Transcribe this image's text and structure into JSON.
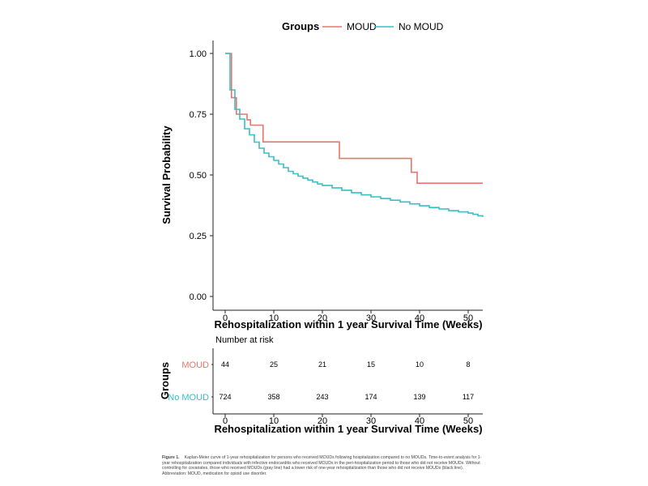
{
  "chart_data": [
    {
      "type": "line",
      "subtype": "step (Kaplan-Meier survival curve)",
      "legend": {
        "title": "Groups",
        "position": "top"
      },
      "xlabel": "Rehospitalization within 1 year Survival Time (Weeks)",
      "ylabel": "Survival Probability",
      "xlim": [
        0,
        53
      ],
      "ylim": [
        0,
        1
      ],
      "x_ticks": [
        0,
        10,
        20,
        30,
        40,
        50
      ],
      "y_ticks": [
        0.0,
        0.25,
        0.5,
        0.75,
        1.0
      ],
      "y_tick_labels": [
        "0.00",
        "0.25",
        "0.50",
        "0.75",
        "1.00"
      ],
      "grid": false,
      "series": [
        {
          "name": "MOUD",
          "color": "#e8766c",
          "points": [
            [
              0,
              1.0
            ],
            [
              1.3,
              0.818
            ],
            [
              2.3,
              0.75
            ],
            [
              4.5,
              0.727
            ],
            [
              5.2,
              0.705
            ],
            [
              7.8,
              0.636
            ],
            [
              23.5,
              0.568
            ],
            [
              38.3,
              0.511
            ],
            [
              39.5,
              0.466
            ],
            [
              53,
              0.466
            ]
          ]
        },
        {
          "name": "No MOUD",
          "color": "#36bfc4",
          "points": [
            [
              0,
              1.0
            ],
            [
              1,
              0.85
            ],
            [
              2,
              0.77
            ],
            [
              3,
              0.73
            ],
            [
              4,
              0.69
            ],
            [
              5,
              0.665
            ],
            [
              6,
              0.635
            ],
            [
              7,
              0.61
            ],
            [
              8,
              0.59
            ],
            [
              9,
              0.575
            ],
            [
              10,
              0.56
            ],
            [
              11,
              0.545
            ],
            [
              12,
              0.53
            ],
            [
              13,
              0.515
            ],
            [
              14,
              0.505
            ],
            [
              15,
              0.495
            ],
            [
              16,
              0.487
            ],
            [
              17,
              0.479
            ],
            [
              18,
              0.471
            ],
            [
              19,
              0.463
            ],
            [
              20,
              0.457
            ],
            [
              22,
              0.447
            ],
            [
              24,
              0.437
            ],
            [
              26,
              0.427
            ],
            [
              28,
              0.418
            ],
            [
              30,
              0.41
            ],
            [
              32,
              0.403
            ],
            [
              34,
              0.396
            ],
            [
              36,
              0.389
            ],
            [
              38,
              0.381
            ],
            [
              40,
              0.373
            ],
            [
              42,
              0.366
            ],
            [
              44,
              0.36
            ],
            [
              46,
              0.353
            ],
            [
              48,
              0.348
            ],
            [
              50,
              0.343
            ],
            [
              51,
              0.338
            ],
            [
              52,
              0.332
            ],
            [
              53,
              0.327
            ]
          ]
        }
      ]
    },
    {
      "type": "table",
      "title": "Number at risk",
      "ylabel": "Groups",
      "xlabel": "Rehospitalization within 1 year Survival Time (Weeks)",
      "xlim": [
        0,
        53
      ],
      "x_ticks": [
        0,
        10,
        20,
        30,
        40,
        50
      ],
      "rows": [
        {
          "name": "MOUD",
          "color": "#e8766c",
          "values": [
            44,
            25,
            21,
            15,
            10,
            8
          ]
        },
        {
          "name": "No MOUD",
          "color": "#36bfc4",
          "values": [
            724,
            358,
            243,
            174,
            139,
            117
          ]
        }
      ]
    }
  ],
  "caption": {
    "label": "Figure 1.",
    "text": "Kaplan-Meier curve of 1-year rehospitalization for persons who received MOUDs following hospitalization compared to no MOUDs. Time-to-event analysis for 1-year rehospitalization compared individuals with infective endocarditis who received MOUDs in the peri-hospitalization period to those who did not receive MOUDs. Without controlling for covariates, those who received MOUDs (gray line) had a lower risk of one-year rehospitalization than those who did not receive MOUDs (black line). Abbreviation: MOUD, medication for opioid use disorder."
  }
}
